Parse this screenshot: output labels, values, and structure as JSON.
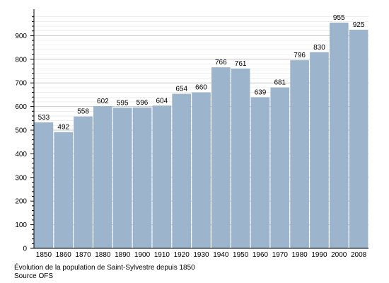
{
  "chart_data": {
    "type": "bar",
    "categories": [
      "1850",
      "1860",
      "1870",
      "1880",
      "1890",
      "1900",
      "1910",
      "1920",
      "1930",
      "1940",
      "1950",
      "1960",
      "1970",
      "1980",
      "1990",
      "2000",
      "2008"
    ],
    "values": [
      533,
      492,
      558,
      602,
      595,
      596,
      604,
      654,
      660,
      766,
      761,
      639,
      681,
      796,
      830,
      955,
      925
    ],
    "ylim": [
      0,
      1000
    ],
    "yticks": [
      0,
      100,
      200,
      300,
      400,
      500,
      600,
      700,
      800,
      900
    ],
    "grid": "horizontal, major every 100 with minor lines every 20",
    "bar_color": "#9cb4cc",
    "grid_color": "#c8c8c8",
    "data_labels": true,
    "caption_line1": "Évolution de la population de Saint-Sylvestre depuis 1850",
    "caption_line2": "Source OFS"
  }
}
